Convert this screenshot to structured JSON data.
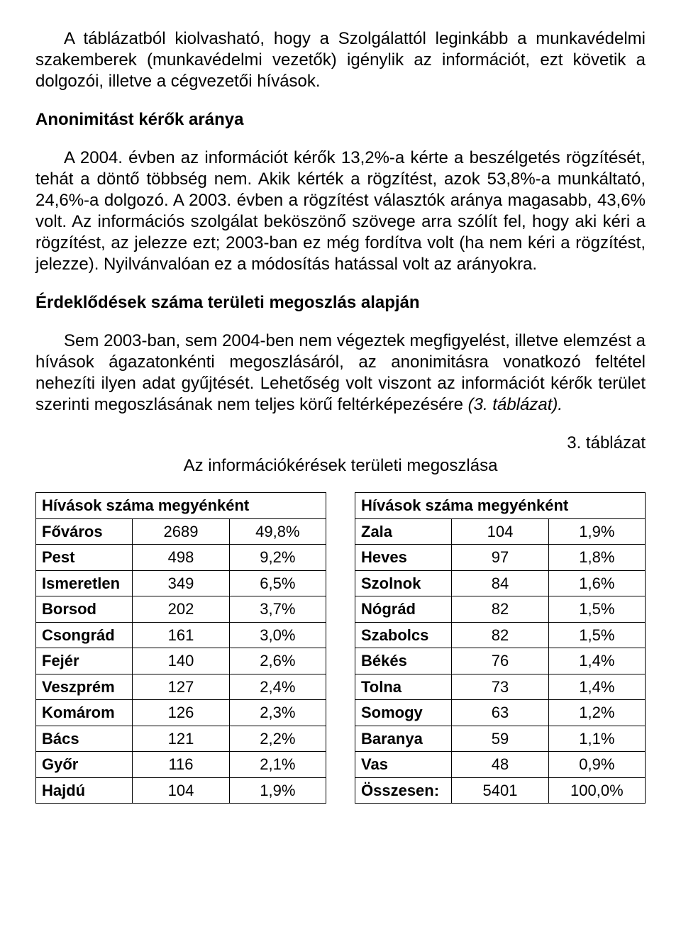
{
  "paragraphs": {
    "p1": "A táblázatból kiolvasható, hogy a Szolgálattól leginkább a munkavédelmi szakemberek (munkavédelmi vezetők) igénylik az információt, ezt követik a dolgozói, illetve a cégvezetői hívások.",
    "h2": "Anonimitást kérők aránya",
    "p2": "A 2004. évben az információt kérők 13,2%-a kérte a beszélgetés rögzítését, tehát a döntő többség nem. Akik kérték a rögzítést, azok 53,8%-a munkáltató, 24,6%-a dolgozó. A 2003. évben a rögzítést választók aránya magasabb, 43,6% volt. Az információs szolgálat beköszönő szövege arra szólít fel, hogy aki kéri a rögzítést, az jelezze ezt; 2003-ban ez még fordítva volt (ha nem kéri a rögzítést, jelezze). Nyilvánvalóan ez a módosítás hatással volt az arányokra.",
    "h3": "Érdeklődések száma területi megoszlás alapján",
    "p3": "Sem 2003-ban, sem 2004-ben nem végeztek megfigyelést, illetve elemzést a hívások ágazatonkénti megoszlásáról, az anonimitásra vonatkozó feltétel nehezíti ilyen adat gyűjtését. Lehetőség volt viszont az információt kérők terület szerinti megoszlásának nem teljes körű feltérképezésére ",
    "p3_italic": "(3. táblázat).",
    "table_label": "3. táblázat",
    "table_caption": "Az információkérések területi megoszlása"
  },
  "tables": {
    "header_text": "Hívások száma megyénként",
    "left": [
      {
        "name": "Főváros",
        "count": "2689",
        "pct": "49,8%"
      },
      {
        "name": "Pest",
        "count": "498",
        "pct": "9,2%"
      },
      {
        "name": "Ismeretlen",
        "count": "349",
        "pct": "6,5%"
      },
      {
        "name": "Borsod",
        "count": "202",
        "pct": "3,7%"
      },
      {
        "name": "Csongrád",
        "count": "161",
        "pct": "3,0%"
      },
      {
        "name": "Fejér",
        "count": "140",
        "pct": "2,6%"
      },
      {
        "name": "Veszprém",
        "count": "127",
        "pct": "2,4%"
      },
      {
        "name": "Komárom",
        "count": "126",
        "pct": "2,3%"
      },
      {
        "name": "Bács",
        "count": "121",
        "pct": "2,2%"
      },
      {
        "name": "Győr",
        "count": "116",
        "pct": "2,1%"
      },
      {
        "name": "Hajdú",
        "count": "104",
        "pct": "1,9%"
      }
    ],
    "right": [
      {
        "name": "Zala",
        "count": "104",
        "pct": "1,9%"
      },
      {
        "name": "Heves",
        "count": "97",
        "pct": "1,8%"
      },
      {
        "name": "Szolnok",
        "count": "84",
        "pct": "1,6%"
      },
      {
        "name": "Nógrád",
        "count": "82",
        "pct": "1,5%"
      },
      {
        "name": "Szabolcs",
        "count": "82",
        "pct": "1,5%"
      },
      {
        "name": "Békés",
        "count": "76",
        "pct": "1,4%"
      },
      {
        "name": "Tolna",
        "count": "73",
        "pct": "1,4%"
      },
      {
        "name": "Somogy",
        "count": "63",
        "pct": "1,2%"
      },
      {
        "name": "Baranya",
        "count": "59",
        "pct": "1,1%"
      },
      {
        "name": "Vas",
        "count": "48",
        "pct": "0,9%"
      },
      {
        "name": "Összesen:",
        "count": "5401",
        "pct": "100,0%"
      }
    ]
  }
}
